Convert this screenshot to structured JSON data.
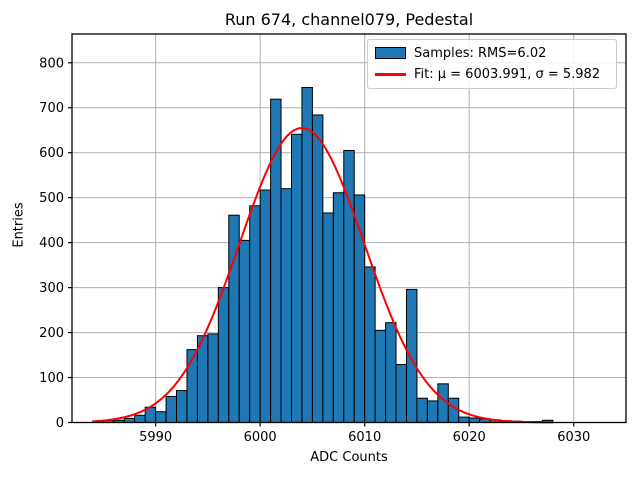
{
  "chart_data": {
    "type": "bar",
    "subtype": "histogram",
    "title": "Run 674, channel079, Pedestal",
    "xlabel": "ADC Counts",
    "ylabel": "Entries",
    "xlim": [
      5982,
      6035
    ],
    "ylim": [
      0,
      864
    ],
    "xticks": [
      5990,
      6000,
      6010,
      6020,
      6030
    ],
    "yticks": [
      0,
      100,
      200,
      300,
      400,
      500,
      600,
      700,
      800
    ],
    "grid": true,
    "grid_color": "#b0b0b0",
    "bar_color": "#1f77b4",
    "bar_edge_color": "#000000",
    "bins": {
      "start": 5984,
      "width": 1,
      "counts": [
        3,
        5,
        5,
        9,
        16,
        34,
        24,
        58,
        71,
        162,
        193,
        197,
        300,
        461,
        405,
        482,
        517,
        719,
        520,
        641,
        745,
        684,
        466,
        511,
        605,
        506,
        346,
        205,
        222,
        129,
        296,
        54,
        48,
        86,
        54,
        12,
        10,
        8,
        6,
        4,
        3,
        2,
        2,
        5
      ]
    },
    "fit": {
      "type": "gaussian",
      "mu": 6003.991,
      "sigma": 5.982,
      "amplitude": 655,
      "color": "#ff0000",
      "x_range": [
        5984,
        6028
      ]
    },
    "stats": {
      "rms": "6.02"
    },
    "legend": {
      "position": "upper right",
      "entries": [
        {
          "label": "Samples: RMS=6.02",
          "swatch": "patch",
          "color": "#1f77b4"
        },
        {
          "label": "Fit: μ = 6003.991, σ = 5.982",
          "swatch": "line",
          "color": "#ff0000"
        }
      ]
    }
  }
}
